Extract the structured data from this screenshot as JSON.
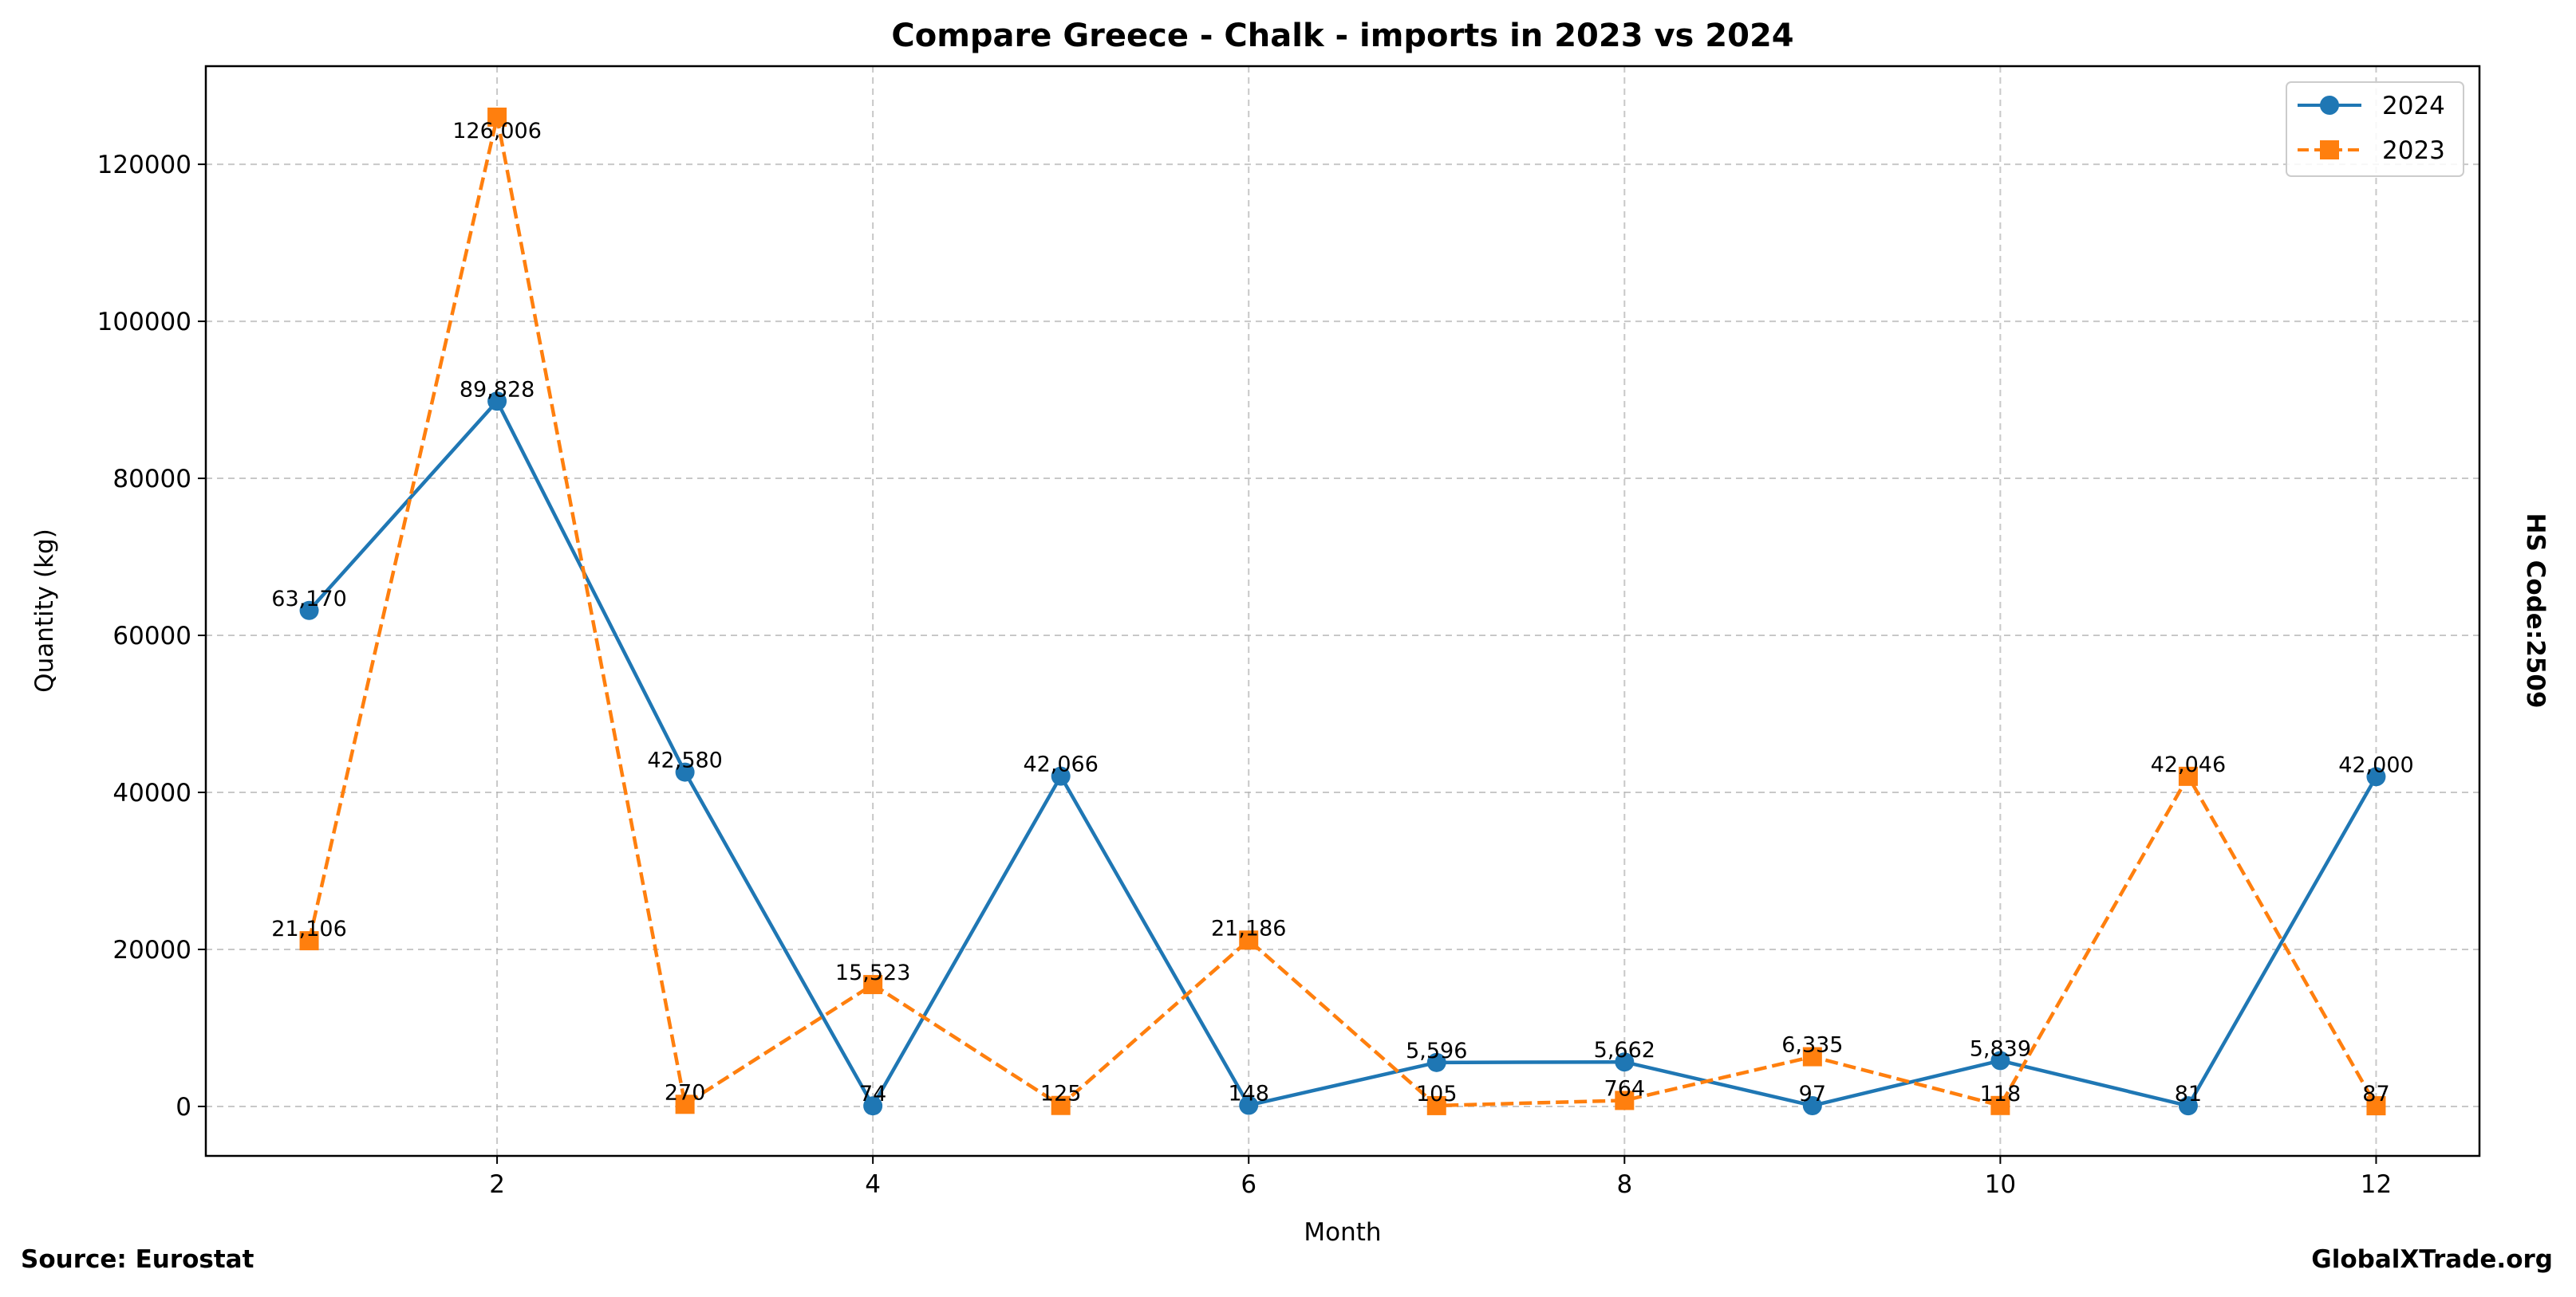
{
  "chart_data": {
    "type": "line",
    "title": "Compare Greece - Chalk - imports in 2023 vs 2024",
    "xlabel": "Month",
    "ylabel": "Quantity (kg)",
    "right_label": "HS Code:2509",
    "source": "Source: Eurostat",
    "watermark": "GlobalXTrade.org",
    "x": [
      1,
      2,
      3,
      4,
      5,
      6,
      7,
      8,
      9,
      10,
      11,
      12
    ],
    "xlim": [
      0.45,
      12.55
    ],
    "ylim": [
      -6300,
      132500
    ],
    "xticks": [
      2,
      4,
      6,
      8,
      10,
      12
    ],
    "yticks": [
      0,
      20000,
      40000,
      60000,
      80000,
      100000,
      120000
    ],
    "grid": true,
    "legend_position": "top-right",
    "series": [
      {
        "name": "2024",
        "color": "#1f77b4",
        "style": "solid",
        "marker": "circle",
        "values": [
          63170,
          89828,
          42580,
          74,
          42066,
          148,
          5596,
          5662,
          97,
          5839,
          81,
          42000
        ],
        "labels": [
          "63,170",
          "89,828",
          "42,580",
          "74",
          "42,066",
          "148",
          "5,596",
          "5,662",
          "97",
          "5,839",
          "81",
          "42,000"
        ]
      },
      {
        "name": "2023",
        "color": "#ff7f0e",
        "style": "dashed",
        "marker": "square",
        "values": [
          21106,
          126006,
          270,
          15523,
          125,
          21186,
          105,
          764,
          6335,
          118,
          42046,
          87
        ],
        "labels": [
          "21,106",
          "126,006",
          "270",
          "15,523",
          "125",
          "21,186",
          "105",
          "764",
          "6,335",
          "118",
          "42,046",
          "87"
        ]
      }
    ]
  }
}
